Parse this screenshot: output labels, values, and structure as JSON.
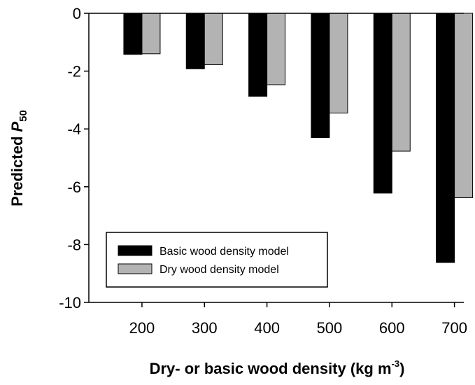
{
  "chart_data": {
    "type": "bar",
    "categories": [
      "200",
      "300",
      "400",
      "500",
      "600",
      "700"
    ],
    "series": [
      {
        "name": "Basic wood density model",
        "color": "#000000",
        "values": [
          -1.42,
          -1.92,
          -2.87,
          -4.3,
          -6.22,
          -8.62
        ]
      },
      {
        "name": "Dry wood density model",
        "color": "#b3b3b3",
        "values": [
          -1.4,
          -1.78,
          -2.47,
          -3.45,
          -4.77,
          -6.38
        ]
      }
    ],
    "yticks": [
      "0",
      "-2",
      "-4",
      "-6",
      "-8",
      "-10"
    ],
    "ylim": [
      -10,
      0
    ],
    "ylabel": {
      "prefix": "Predicted ",
      "symbol": "P",
      "subscript": "50"
    },
    "xlabel": {
      "main": "Dry- or basic wood density (kg m",
      "superscript": "-3",
      "close": ")"
    },
    "legend_position": "lower-left",
    "grid": false
  }
}
